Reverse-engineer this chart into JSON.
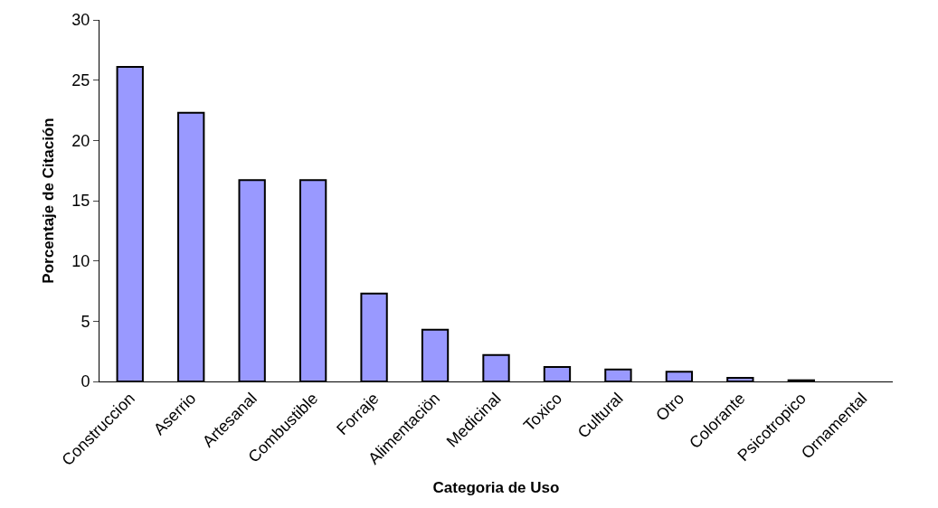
{
  "chart_data": {
    "type": "bar",
    "xlabel": "Categoria de Uso",
    "ylabel": "Porcentaje de Citación",
    "categories": [
      "Construccion",
      "Aserrio",
      "Artesanal",
      "Combustible",
      "Forraje",
      "Alimentaciön",
      "Medicinal",
      "Toxico",
      "Cultural",
      "Otro",
      "Colorante",
      "Psicotropico",
      "Ornamental"
    ],
    "values": [
      26.1,
      22.3,
      16.7,
      16.7,
      7.3,
      4.3,
      2.2,
      1.2,
      1.0,
      0.8,
      0.3,
      0.1,
      0
    ],
    "color": "#9999ff",
    "ylim": [
      0,
      30
    ],
    "yticks": [
      0,
      5,
      10,
      15,
      20,
      25,
      30
    ]
  }
}
